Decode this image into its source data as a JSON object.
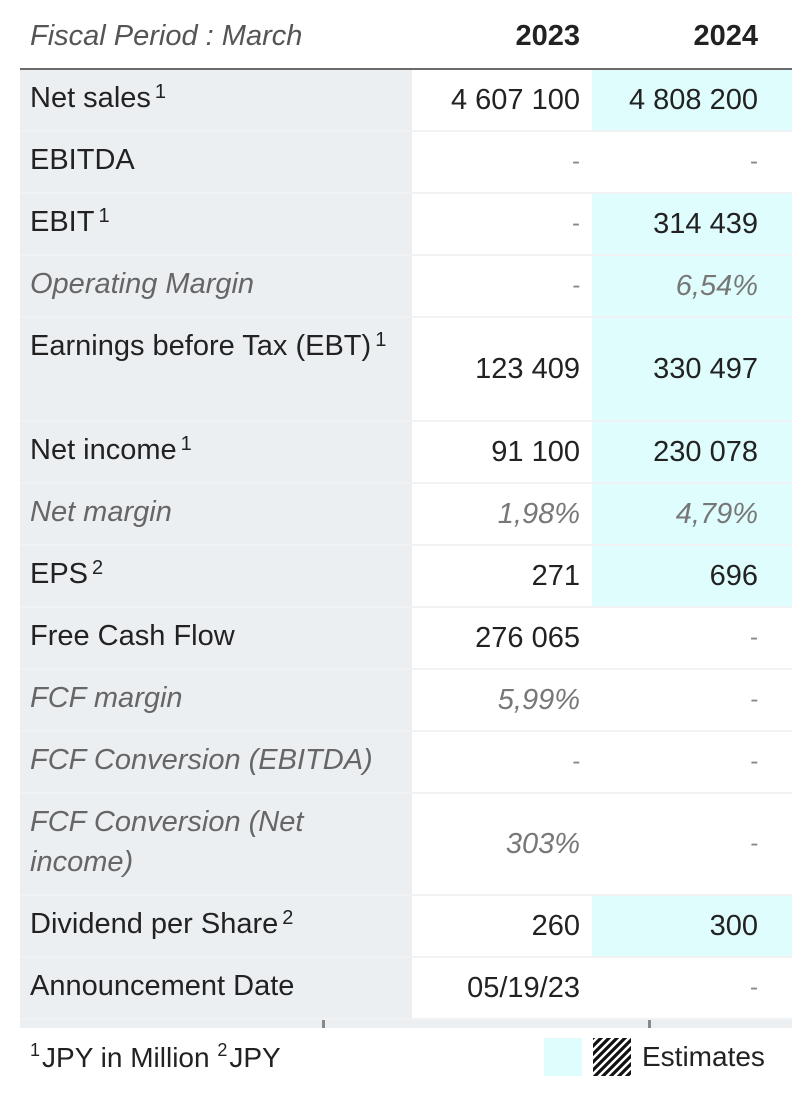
{
  "header": {
    "label": "Fiscal Period : March",
    "year1": "2023",
    "year2": "2024"
  },
  "rows": [
    {
      "label": "Net sales",
      "sup": "1",
      "v1": "4 607 100",
      "v2": "4 808 200",
      "est2": true
    },
    {
      "label": "EBITDA",
      "sup": "",
      "v1": "-",
      "v2": "-"
    },
    {
      "label": "EBIT",
      "sup": "1",
      "v1": "-",
      "v2": "314 439",
      "est2": true
    },
    {
      "label": "Operating Margin",
      "sup": "",
      "v1": "-",
      "v2": "6,54%",
      "est2": true,
      "italic": true
    },
    {
      "label": "Earnings before Tax (EBT)",
      "sup": "1",
      "v1": "123 409",
      "v2": "330 497",
      "est2": true
    },
    {
      "label": "Net income",
      "sup": "1",
      "v1": "91 100",
      "v2": "230 078",
      "est2": true
    },
    {
      "label": "Net margin",
      "sup": "",
      "v1": "1,98%",
      "v2": "4,79%",
      "est2": true,
      "italic": true
    },
    {
      "label": "EPS",
      "sup": "2",
      "v1": "271",
      "v2": "696",
      "est2": true
    },
    {
      "label": "Free Cash Flow",
      "sup": "",
      "v1": "276 065",
      "v2": "-"
    },
    {
      "label": "FCF margin",
      "sup": "",
      "v1": "5,99%",
      "v2": "-",
      "italic": true
    },
    {
      "label": "FCF Conversion (EBITDA)",
      "sup": "",
      "v1": "-",
      "v2": "-",
      "italic": true
    },
    {
      "label": "FCF Conversion (Net income)",
      "sup": "",
      "v1": "303%",
      "v2": "-",
      "italic": true
    },
    {
      "label": "Dividend per Share",
      "sup": "2",
      "v1": "260",
      "v2": "300",
      "est2": true
    },
    {
      "label": "Announcement Date",
      "sup": "",
      "v1": "05/19/23",
      "v2": "-"
    }
  ],
  "footer": {
    "note1_mark": "1",
    "note1_text": "JPY in Million",
    "note2_mark": "2",
    "note2_text": "JPY",
    "legend_label": "Estimates",
    "estimate_color": "#dffdfd"
  }
}
